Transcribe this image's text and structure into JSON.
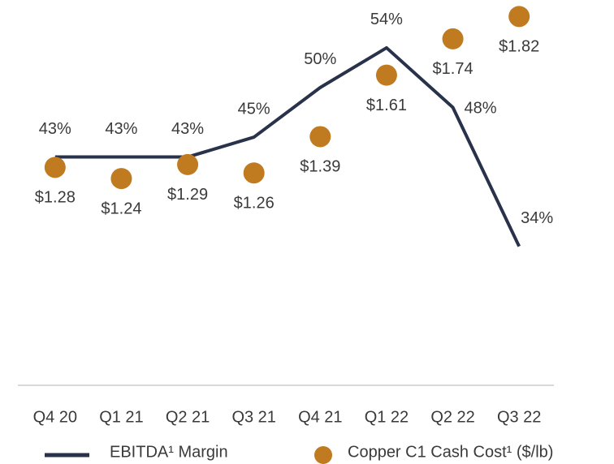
{
  "chart_data": {
    "type": "line",
    "categories": [
      "Q4 20",
      "Q1 21",
      "Q2 21",
      "Q3 21",
      "Q4 21",
      "Q1 22",
      "Q2 22",
      "Q3 22"
    ],
    "series": [
      {
        "name": "EBITDA¹ Margin",
        "type": "line",
        "color": "#28324a",
        "axis": "y",
        "values": [
          43,
          43,
          43,
          45,
          50,
          54,
          48,
          34
        ],
        "value_labels": [
          "43%",
          "43%",
          "43%",
          "45%",
          "50%",
          "54%",
          "48%",
          "34%"
        ]
      },
      {
        "name": "Copper C1 Cash Cost¹ ($/lb)",
        "type": "scatter",
        "color": "#c07a1f",
        "axis": "y2",
        "values": [
          1.28,
          1.24,
          1.29,
          1.26,
          1.39,
          1.61,
          1.74,
          1.82
        ],
        "value_labels": [
          "$1.28",
          "$1.24",
          "$1.29",
          "$1.26",
          "$1.39",
          "$1.61",
          "$1.74",
          "$1.82"
        ]
      }
    ],
    "ylim": [
      20,
      58
    ],
    "y2lim": [
      0.5,
      1.85
    ]
  }
}
